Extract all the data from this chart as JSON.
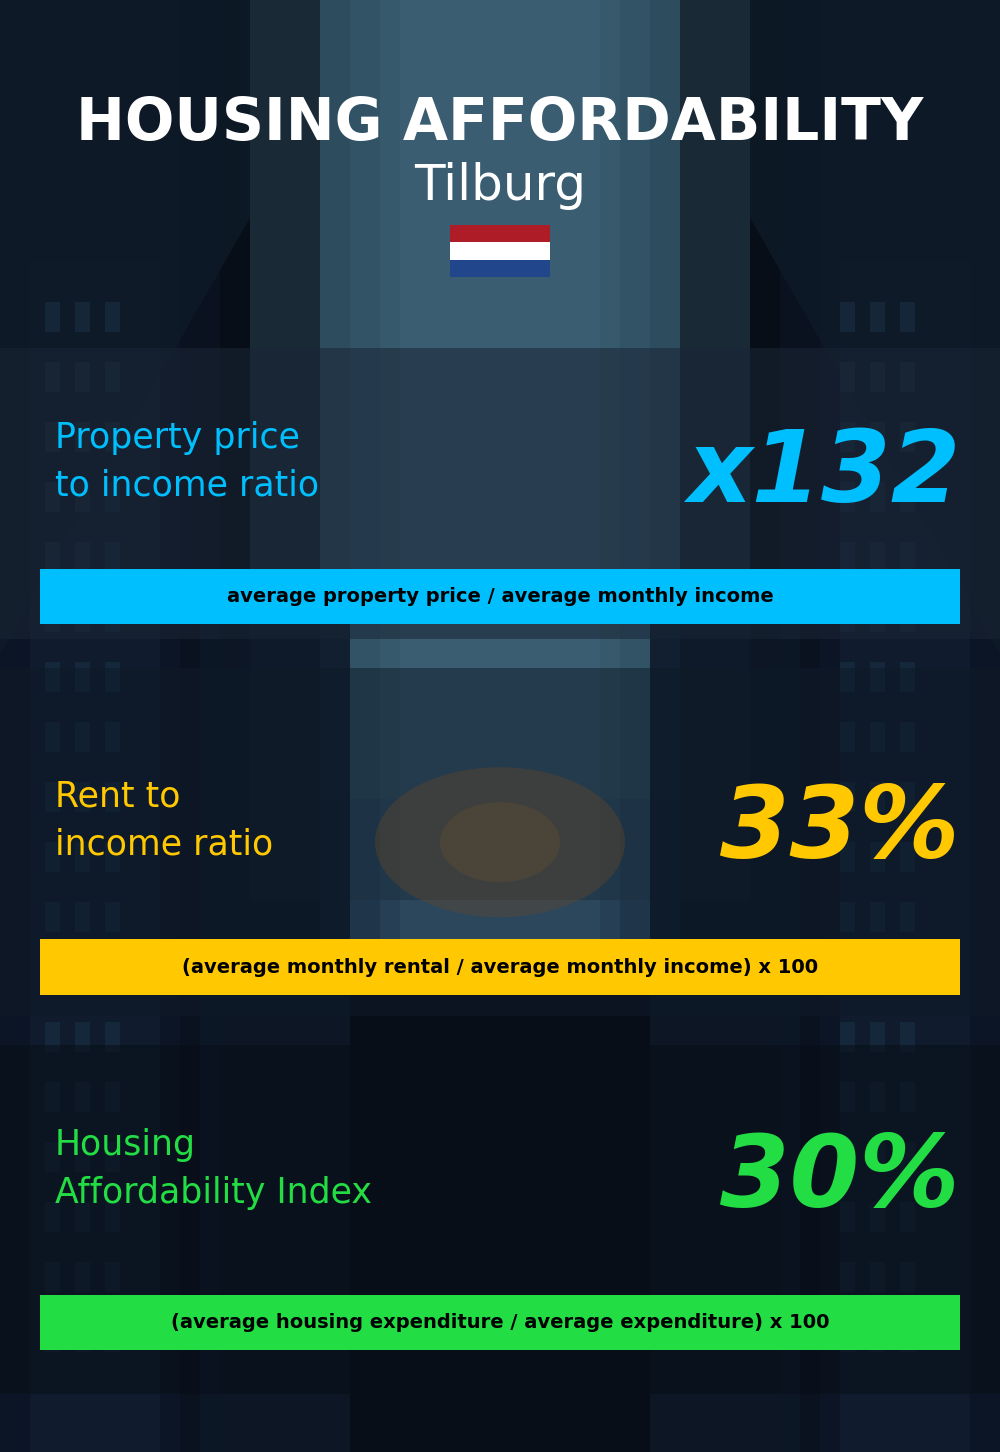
{
  "title_main": "HOUSING AFFORDABILITY",
  "title_city": "Tilburg",
  "bg_color": "#080e18",
  "section1_label": "Property price\nto income ratio",
  "section1_value": "x132",
  "section1_label_color": "#00bfff",
  "section1_value_color": "#00bfff",
  "section1_formula": "average property price / average monthly income",
  "section1_formula_bg": "#00bfff",
  "section1_formula_color": "#000000",
  "section2_label": "Rent to\nincome ratio",
  "section2_value": "33%",
  "section2_label_color": "#ffc800",
  "section2_value_color": "#ffc800",
  "section2_formula": "(average monthly rental / average monthly income) x 100",
  "section2_formula_bg": "#ffc800",
  "section2_formula_color": "#000000",
  "section3_label": "Housing\nAffordability Index",
  "section3_value": "30%",
  "section3_label_color": "#22dd44",
  "section3_value_color": "#22dd44",
  "section3_formula": "(average housing expenditure / average expenditure) x 100",
  "section3_formula_bg": "#22dd44",
  "section3_formula_color": "#000000"
}
